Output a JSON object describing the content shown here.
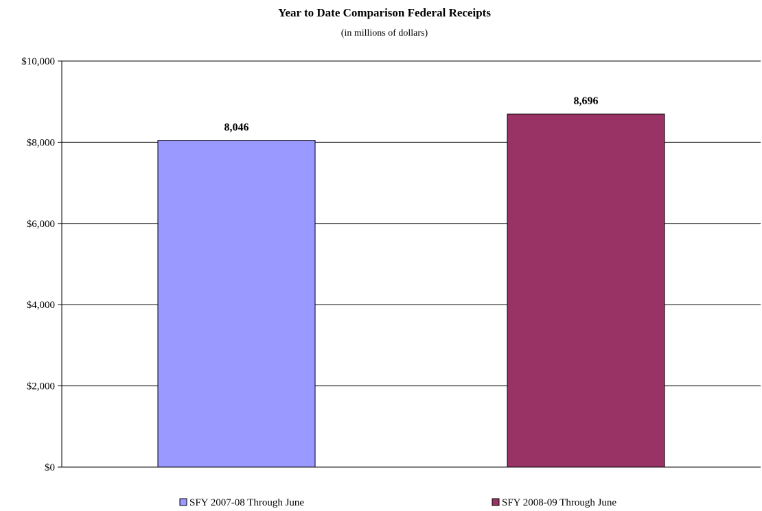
{
  "chart_data": {
    "type": "bar",
    "title": "Year to Date Comparison Federal Receipts",
    "subtitle": "(in millions of dollars)",
    "xlabel": "",
    "ylabel": "",
    "ylim": [
      0,
      10000
    ],
    "yticks": [
      0,
      2000,
      4000,
      6000,
      8000,
      10000
    ],
    "ytick_labels": [
      "$0",
      "$2,000",
      "$4,000",
      "$6,000",
      "$8,000",
      "$10,000"
    ],
    "grid": true,
    "legend_position": "bottom",
    "series": [
      {
        "name": "SFY 2007-08 Through June",
        "value": 8046,
        "label": "8,046",
        "color": "#9999ff"
      },
      {
        "name": "SFY 2008-09 Through June",
        "value": 8696,
        "label": "8,696",
        "color": "#993366"
      }
    ]
  }
}
